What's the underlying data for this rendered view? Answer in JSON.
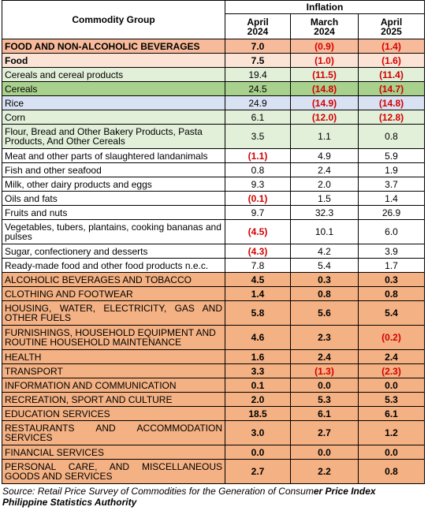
{
  "header": {
    "commodity_group": "Commodity Group",
    "inflation": "Inflation",
    "col1": "April 2024",
    "col2": "March 2024",
    "col3": "April 2025"
  },
  "rows": [
    {
      "label": "FOOD AND NON-ALCOHOLIC BEVERAGES",
      "v1": "7.0",
      "v2": "(0.9)",
      "v3": "(1.4)"
    },
    {
      "label": "Food",
      "v1": "7.5",
      "v2": "(1.0)",
      "v3": "(1.6)"
    },
    {
      "label": "Cereals and cereal products",
      "v1": "19.4",
      "v2": "(11.5)",
      "v3": "(11.4)"
    },
    {
      "label": "Cereals",
      "v1": "24.5",
      "v2": "(14.8)",
      "v3": "(14.7)"
    },
    {
      "label": "Rice",
      "v1": "24.9",
      "v2": "(14.9)",
      "v3": "(14.8)"
    },
    {
      "label": "Corn",
      "v1": "6.1",
      "v2": "(12.0)",
      "v3": "(12.8)"
    },
    {
      "label": "Flour, Bread and Other Bakery Products, Pasta Products, And Other Cereals",
      "v1": "3.5",
      "v2": "1.1",
      "v3": "0.8"
    },
    {
      "label": "Meat and other parts of slaughtered landanimals",
      "v1": "(1.1)",
      "v2": "4.9",
      "v3": "5.9"
    },
    {
      "label": "Fish and other seafood",
      "v1": "0.8",
      "v2": "2.4",
      "v3": "1.9"
    },
    {
      "label": "Milk, other dairy products and eggs",
      "v1": "9.3",
      "v2": "2.0",
      "v3": "3.7"
    },
    {
      "label": "Oils and fats",
      "v1": "(0.1)",
      "v2": "1.5",
      "v3": "1.4"
    },
    {
      "label": "Fruits and nuts",
      "v1": "9.7",
      "v2": "32.3",
      "v3": "26.9"
    },
    {
      "label": "Vegetables, tubers, plantains, cooking bananas and pulses",
      "v1": "(4.5)",
      "v2": "10.1",
      "v3": "6.0"
    },
    {
      "label": "Sugar, confectionery and desserts",
      "v1": "(4.3)",
      "v2": "4.2",
      "v3": "3.9"
    },
    {
      "label": "Ready-made food and other food products n.e.c.",
      "v1": "7.8",
      "v2": "5.4",
      "v3": "1.7"
    },
    {
      "label": "ALCOHOLIC BEVERAGES AND TOBACCO",
      "v1": "4.5",
      "v2": "0.3",
      "v3": "0.3"
    },
    {
      "label": "CLOTHING AND FOOTWEAR",
      "v1": "1.4",
      "v2": "0.8",
      "v3": "0.8"
    },
    {
      "label": "HOUSING, WATER, ELECTRICITY, GAS AND OTHER FUELS",
      "v1": "5.8",
      "v2": "5.6",
      "v3": "5.4"
    },
    {
      "label": "FURNISHINGS, HOUSEHOLD EQUIPMENT AND ROUTINE HOUSEHOLD MAINTENANCE",
      "v1": "4.6",
      "v2": "2.3",
      "v3": "(0.2)"
    },
    {
      "label": "HEALTH",
      "v1": "1.6",
      "v2": "2.4",
      "v3": "2.4"
    },
    {
      "label": "TRANSPORT",
      "v1": "3.3",
      "v2": "(1.3)",
      "v3": "(2.3)"
    },
    {
      "label": "INFORMATION AND COMMUNICATION",
      "v1": "0.1",
      "v2": "0.0",
      "v3": "0.0"
    },
    {
      "label": "RECREATION, SPORT AND CULTURE",
      "v1": "2.0",
      "v2": "5.3",
      "v3": "5.3"
    },
    {
      "label": "EDUCATION SERVICES",
      "v1": "18.5",
      "v2": "6.1",
      "v3": "6.1"
    },
    {
      "label": "RESTAURANTS AND ACCOMMODATION SERVICES",
      "v1": "3.0",
      "v2": "2.7",
      "v3": "1.2"
    },
    {
      "label": "FINANCIAL SERVICES",
      "v1": "0.0",
      "v2": "0.0",
      "v3": "0.0"
    },
    {
      "label": "PERSONAL CARE, AND MISCELLANEOUS GOODS AND SERVICES",
      "v1": "2.7",
      "v2": "2.2",
      "v3": "0.8"
    }
  ],
  "source": {
    "line1_italic": "Source: Retail Price Survey of Commodities for the Generation of Consum",
    "line1_bold": "er Price Index",
    "line2": "Philippine Statistics Authority"
  }
}
